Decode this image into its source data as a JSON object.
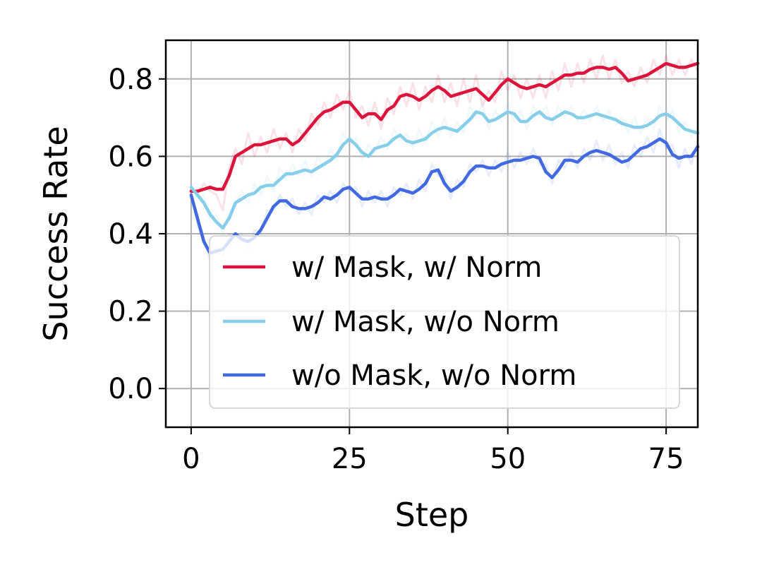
{
  "chart_data": {
    "type": "line",
    "title": "",
    "xlabel": "Step",
    "ylabel": "Success Rate",
    "xlim": [
      -4,
      80
    ],
    "ylim": [
      -0.1,
      0.9
    ],
    "xticks": [
      0,
      25,
      50,
      75
    ],
    "xtick_labels": [
      "0",
      "25",
      "50",
      "75"
    ],
    "yticks": [
      0.0,
      0.2,
      0.4,
      0.6,
      0.8
    ],
    "ytick_labels": [
      "0.0",
      "0.2",
      "0.4",
      "0.6",
      "0.8"
    ],
    "grid": true,
    "legend_position": "lower-right",
    "x": [
      0,
      1,
      2,
      3,
      4,
      5,
      6,
      7,
      8,
      9,
      10,
      11,
      12,
      13,
      14,
      15,
      16,
      17,
      18,
      19,
      20,
      21,
      22,
      23,
      24,
      25,
      26,
      27,
      28,
      29,
      30,
      31,
      32,
      33,
      34,
      35,
      36,
      37,
      38,
      39,
      40,
      41,
      42,
      43,
      44,
      45,
      46,
      47,
      48,
      49,
      50,
      51,
      52,
      53,
      54,
      55,
      56,
      57,
      58,
      59,
      60,
      61,
      62,
      63,
      64,
      65,
      66,
      67,
      68,
      69,
      70,
      71,
      72,
      73,
      74,
      75,
      76,
      77,
      78,
      79,
      80
    ],
    "series": [
      {
        "name": "w/ Mask, w/ Norm",
        "color": "#dc143c",
        "values": [
          0.51,
          0.51,
          0.515,
          0.52,
          0.515,
          0.515,
          0.55,
          0.6,
          0.61,
          0.62,
          0.63,
          0.63,
          0.635,
          0.64,
          0.645,
          0.645,
          0.63,
          0.64,
          0.66,
          0.68,
          0.7,
          0.715,
          0.72,
          0.73,
          0.74,
          0.74,
          0.72,
          0.7,
          0.71,
          0.71,
          0.695,
          0.72,
          0.73,
          0.755,
          0.76,
          0.755,
          0.745,
          0.755,
          0.77,
          0.78,
          0.77,
          0.755,
          0.76,
          0.765,
          0.77,
          0.775,
          0.76,
          0.745,
          0.765,
          0.785,
          0.8,
          0.79,
          0.78,
          0.775,
          0.78,
          0.785,
          0.78,
          0.79,
          0.8,
          0.81,
          0.81,
          0.815,
          0.815,
          0.825,
          0.83,
          0.83,
          0.825,
          0.83,
          0.815,
          0.795,
          0.8,
          0.805,
          0.81,
          0.82,
          0.83,
          0.84,
          0.835,
          0.83,
          0.83,
          0.835,
          0.84
        ],
        "raw_values": [
          0.52,
          0.5,
          0.53,
          0.51,
          0.5,
          0.46,
          0.57,
          0.62,
          0.58,
          0.66,
          0.6,
          0.65,
          0.61,
          0.67,
          0.62,
          0.66,
          0.61,
          0.67,
          0.64,
          0.71,
          0.68,
          0.74,
          0.7,
          0.76,
          0.72,
          0.77,
          0.7,
          0.73,
          0.68,
          0.74,
          0.67,
          0.75,
          0.71,
          0.78,
          0.73,
          0.79,
          0.72,
          0.78,
          0.74,
          0.81,
          0.74,
          0.79,
          0.73,
          0.8,
          0.74,
          0.81,
          0.73,
          0.77,
          0.74,
          0.82,
          0.77,
          0.81,
          0.75,
          0.8,
          0.75,
          0.81,
          0.75,
          0.82,
          0.77,
          0.84,
          0.78,
          0.84,
          0.79,
          0.85,
          0.8,
          0.86,
          0.8,
          0.85,
          0.79,
          0.82,
          0.78,
          0.83,
          0.79,
          0.85,
          0.81,
          0.86,
          0.81,
          0.85,
          0.81,
          0.85,
          0.82
        ]
      },
      {
        "name": "w/ Mask, w/o Norm",
        "color": "#87ceeb",
        "values": [
          0.52,
          0.5,
          0.48,
          0.45,
          0.43,
          0.415,
          0.44,
          0.48,
          0.49,
          0.5,
          0.505,
          0.52,
          0.525,
          0.525,
          0.54,
          0.555,
          0.555,
          0.56,
          0.565,
          0.56,
          0.57,
          0.58,
          0.59,
          0.605,
          0.63,
          0.645,
          0.63,
          0.61,
          0.6,
          0.62,
          0.625,
          0.63,
          0.645,
          0.655,
          0.64,
          0.635,
          0.64,
          0.645,
          0.66,
          0.67,
          0.675,
          0.67,
          0.665,
          0.68,
          0.695,
          0.715,
          0.71,
          0.69,
          0.695,
          0.705,
          0.715,
          0.71,
          0.69,
          0.69,
          0.705,
          0.715,
          0.7,
          0.695,
          0.705,
          0.715,
          0.71,
          0.7,
          0.7,
          0.705,
          0.71,
          0.705,
          0.7,
          0.695,
          0.685,
          0.68,
          0.675,
          0.675,
          0.68,
          0.69,
          0.705,
          0.71,
          0.7,
          0.685,
          0.67,
          0.665,
          0.66
        ],
        "raw_values": [
          0.53,
          0.49,
          0.5,
          0.44,
          0.45,
          0.4,
          0.46,
          0.47,
          0.51,
          0.48,
          0.53,
          0.5,
          0.55,
          0.51,
          0.57,
          0.54,
          0.58,
          0.55,
          0.59,
          0.55,
          0.6,
          0.57,
          0.62,
          0.59,
          0.66,
          0.63,
          0.65,
          0.59,
          0.63,
          0.61,
          0.65,
          0.62,
          0.67,
          0.64,
          0.66,
          0.62,
          0.67,
          0.63,
          0.69,
          0.65,
          0.7,
          0.65,
          0.69,
          0.66,
          0.73,
          0.7,
          0.74,
          0.67,
          0.72,
          0.69,
          0.74,
          0.69,
          0.72,
          0.67,
          0.73,
          0.7,
          0.73,
          0.68,
          0.73,
          0.7,
          0.73,
          0.69,
          0.72,
          0.69,
          0.73,
          0.69,
          0.72,
          0.68,
          0.7,
          0.66,
          0.7,
          0.66,
          0.7,
          0.67,
          0.73,
          0.69,
          0.72,
          0.66,
          0.69,
          0.65,
          0.68
        ]
      },
      {
        "name": "w/o Mask, w/o Norm",
        "color": "#4169e1",
        "values": [
          0.5,
          0.44,
          0.38,
          0.35,
          0.355,
          0.36,
          0.38,
          0.4,
          0.385,
          0.38,
          0.39,
          0.41,
          0.44,
          0.47,
          0.485,
          0.485,
          0.47,
          0.465,
          0.465,
          0.47,
          0.48,
          0.495,
          0.49,
          0.5,
          0.515,
          0.52,
          0.505,
          0.49,
          0.49,
          0.495,
          0.49,
          0.49,
          0.5,
          0.515,
          0.51,
          0.505,
          0.515,
          0.53,
          0.56,
          0.565,
          0.53,
          0.51,
          0.52,
          0.535,
          0.56,
          0.575,
          0.575,
          0.57,
          0.57,
          0.58,
          0.585,
          0.59,
          0.59,
          0.595,
          0.6,
          0.595,
          0.56,
          0.545,
          0.565,
          0.59,
          0.59,
          0.585,
          0.6,
          0.61,
          0.615,
          0.61,
          0.605,
          0.595,
          0.585,
          0.59,
          0.605,
          0.62,
          0.625,
          0.635,
          0.645,
          0.635,
          0.605,
          0.595,
          0.6,
          0.6,
          0.625
        ],
        "raw_values": [
          0.51,
          0.42,
          0.39,
          0.33,
          0.37,
          0.34,
          0.4,
          0.39,
          0.4,
          0.36,
          0.41,
          0.4,
          0.46,
          0.46,
          0.5,
          0.47,
          0.49,
          0.45,
          0.48,
          0.45,
          0.5,
          0.48,
          0.51,
          0.48,
          0.53,
          0.51,
          0.52,
          0.47,
          0.51,
          0.48,
          0.51,
          0.47,
          0.52,
          0.5,
          0.53,
          0.49,
          0.54,
          0.51,
          0.58,
          0.55,
          0.55,
          0.49,
          0.54,
          0.52,
          0.58,
          0.56,
          0.59,
          0.55,
          0.59,
          0.56,
          0.61,
          0.57,
          0.61,
          0.58,
          0.62,
          0.58,
          0.58,
          0.53,
          0.59,
          0.57,
          0.61,
          0.57,
          0.62,
          0.59,
          0.64,
          0.59,
          0.63,
          0.58,
          0.61,
          0.57,
          0.63,
          0.6,
          0.65,
          0.61,
          0.67,
          0.62,
          0.63,
          0.57,
          0.62,
          0.58,
          0.64
        ]
      }
    ]
  }
}
